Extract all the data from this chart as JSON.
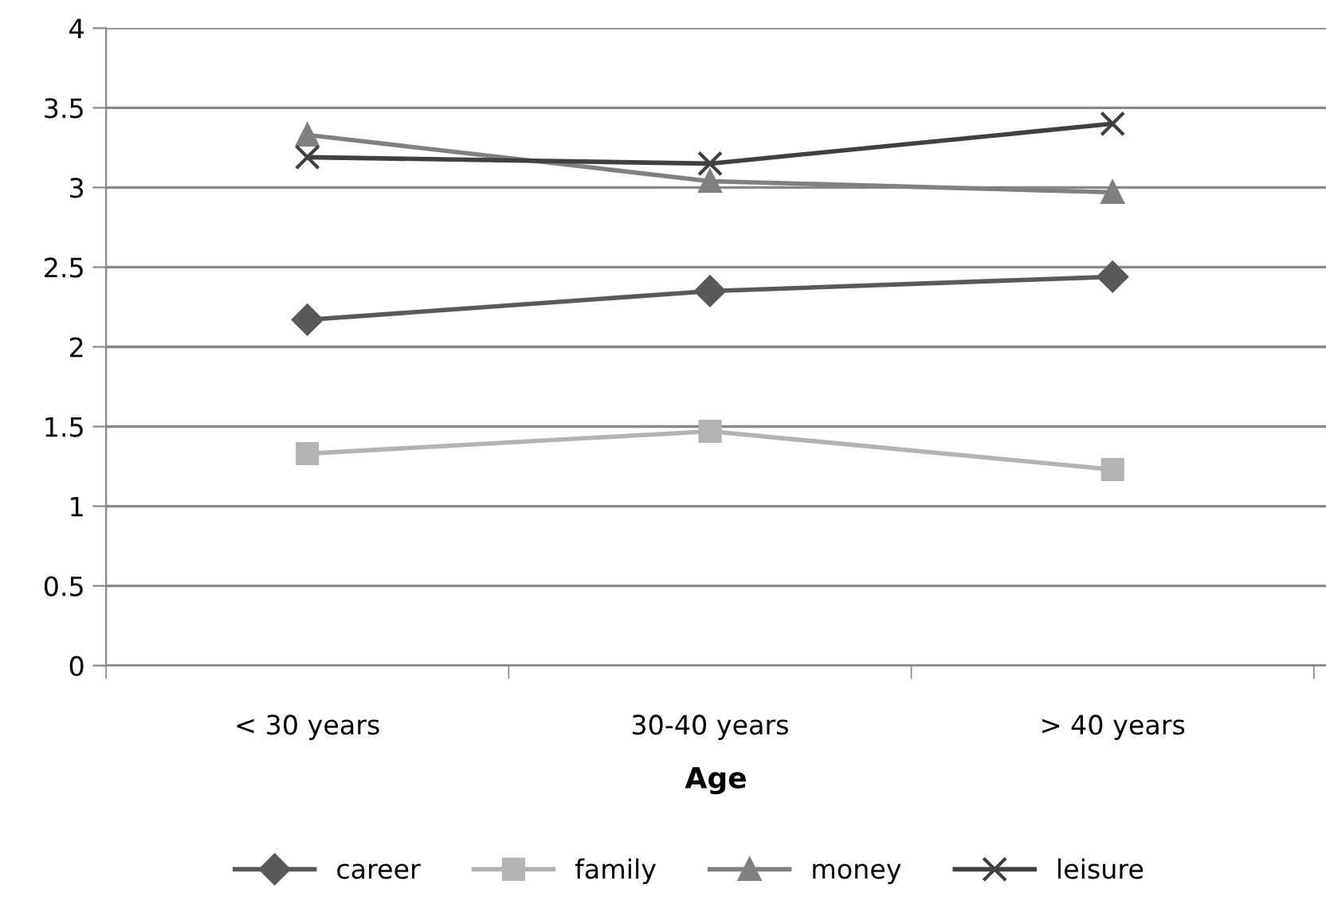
{
  "chart_data": {
    "type": "line",
    "xlabel": "Age",
    "categories": [
      "< 30 years",
      "30-40 years",
      "> 40 years"
    ],
    "series": [
      {
        "name": "career",
        "color": "#595959",
        "marker": "diamond",
        "values": [
          2.17,
          2.35,
          2.44
        ]
      },
      {
        "name": "family",
        "color": "#b3b3b3",
        "marker": "square",
        "values": [
          1.33,
          1.47,
          1.23
        ]
      },
      {
        "name": "money",
        "color": "#808080",
        "marker": "triangle",
        "values": [
          3.33,
          3.04,
          2.97
        ]
      },
      {
        "name": "leisure",
        "color": "#404040",
        "marker": "cross",
        "values": [
          3.19,
          3.15,
          3.4
        ]
      }
    ],
    "ylim": [
      0,
      4
    ],
    "yticks": [
      0,
      0.5,
      1,
      1.5,
      2,
      2.5,
      3,
      3.5,
      4
    ],
    "grid": "y",
    "legend": "bottom"
  }
}
